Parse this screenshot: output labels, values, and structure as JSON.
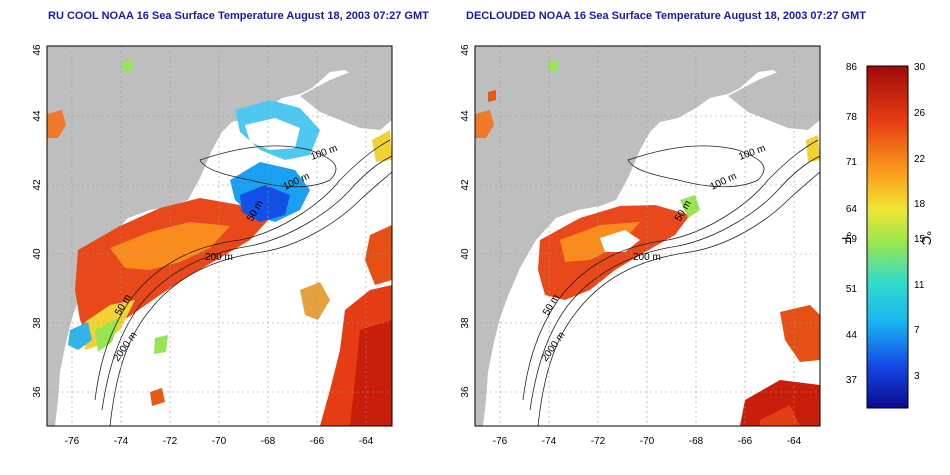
{
  "panels": [
    {
      "title": "RU COOL NOAA 16 Sea Surface Temperature August 18, 2003 07:27 GMT",
      "x_ticks": [
        "-76",
        "-74",
        "-72",
        "-70",
        "-68",
        "-66",
        "-64"
      ],
      "y_ticks": [
        "46",
        "44",
        "42",
        "40",
        "38",
        "36"
      ],
      "contours": [
        "100 m",
        "100 m",
        "50 m",
        "50 m",
        "200 m",
        "50 m",
        "2000 m"
      ]
    },
    {
      "title": "DECLOUDED NOAA 16 Sea Surface Temperature August 18, 2003 07:27 GMT",
      "x_ticks": [
        "-76",
        "-74",
        "-72",
        "-70",
        "-68",
        "-66",
        "-64"
      ],
      "y_ticks": [
        "46",
        "44",
        "42",
        "40",
        "38",
        "36"
      ],
      "contours": [
        "100 m",
        "100 m",
        "50 m",
        "50 m",
        "200 m",
        "50 m",
        "2000 m"
      ]
    }
  ],
  "colorbar": {
    "f_ticks": [
      "86",
      "78",
      "71",
      "64",
      "59",
      "51",
      "44",
      "37"
    ],
    "c_ticks": [
      "30",
      "26",
      "22",
      "18",
      "15",
      "11",
      "7",
      "3"
    ],
    "f_label": "°F",
    "c_label": "°C",
    "stops": [
      "#0a0a8c",
      "#1446e6",
      "#19b4f0",
      "#32dcc8",
      "#96e650",
      "#f0e632",
      "#fa9619",
      "#e63c14",
      "#a00a0a"
    ]
  }
}
